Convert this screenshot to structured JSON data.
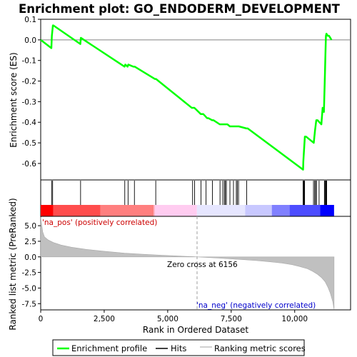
{
  "chart_data": {
    "type": "line",
    "title": "Enrichment plot: GO_ENDODERM_DEVELOPMENT",
    "es_panel": {
      "ylabel": "Enrichment score (ES)",
      "ylim": [
        -0.68,
        0.1
      ],
      "yticks": [
        "0.1",
        "0.0",
        "-0.1",
        "-0.2",
        "-0.3",
        "-0.4",
        "-0.5",
        "-0.6"
      ],
      "ytick_values": [
        0.1,
        0.0,
        -0.1,
        -0.2,
        -0.3,
        -0.4,
        -0.5,
        -0.6
      ],
      "grid": false,
      "series": [
        {
          "name": "Enrichment profile",
          "color": "#00ff00",
          "x": [
            0,
            420,
            440,
            480,
            500,
            1560,
            1580,
            3300,
            3330,
            3420,
            3450,
            3650,
            3700,
            4500,
            4540,
            5950,
            6050,
            6300,
            6400,
            6550,
            6600,
            6750,
            6800,
            7050,
            7100,
            7150,
            7200,
            7250,
            7300,
            7350,
            7450,
            7500,
            7600,
            7650,
            7700,
            7750,
            7800,
            8100,
            8150,
            10330,
            10340,
            10360,
            10380,
            10400,
            10450,
            10750,
            10800,
            10850,
            10900,
            11050,
            11100,
            11150,
            11170,
            11190,
            11210,
            11230,
            11250,
            11300,
            11350,
            11400,
            11450
          ],
          "y": [
            0.0,
            -0.04,
            0.02,
            0.07,
            0.07,
            -0.02,
            0.01,
            -0.13,
            -0.12,
            -0.13,
            -0.12,
            -0.13,
            -0.13,
            -0.19,
            -0.19,
            -0.33,
            -0.33,
            -0.36,
            -0.36,
            -0.38,
            -0.38,
            -0.39,
            -0.39,
            -0.41,
            -0.41,
            -0.41,
            -0.41,
            -0.41,
            -0.41,
            -0.41,
            -0.42,
            -0.42,
            -0.42,
            -0.42,
            -0.42,
            -0.42,
            -0.42,
            -0.43,
            -0.43,
            -0.63,
            -0.59,
            -0.55,
            -0.51,
            -0.47,
            -0.47,
            -0.5,
            -0.44,
            -0.39,
            -0.39,
            -0.41,
            -0.33,
            -0.35,
            -0.26,
            -0.17,
            -0.07,
            0.02,
            0.03,
            0.02,
            0.02,
            0.01,
            0.0
          ]
        }
      ]
    },
    "hits": {
      "name": "Hits",
      "color": "#000000",
      "x": [
        430,
        470,
        1570,
        3310,
        3440,
        3690,
        4530,
        5980,
        6060,
        6310,
        6510,
        6760,
        7060,
        7170,
        7230,
        7270,
        7310,
        7450,
        7590,
        7700,
        7740,
        7790,
        8110,
        10330,
        10350,
        10370,
        10380,
        10390,
        10740,
        10790,
        10820,
        10860,
        10960,
        11170,
        11190,
        11220,
        11240,
        11260
      ]
    },
    "heat_strip": {
      "colors": [
        "#ff0000",
        "#ff4d4d",
        "#ff7f7f",
        "#ffb3c8",
        "#ffccf0",
        "#e6e6ff",
        "#c8c8ff",
        "#8080ff",
        "#4d4dff",
        "#0000ff"
      ],
      "boundaries": [
        0,
        500,
        2350,
        4450,
        4500,
        6150,
        8050,
        9100,
        9800,
        11000,
        11550
      ]
    },
    "metric_panel": {
      "ylabel": "Ranked list metric (PreRanked)",
      "xlabel": "Rank in Ordered Dataset",
      "xlim": [
        0,
        12200
      ],
      "ylim": [
        -8.5,
        6.5
      ],
      "xticks": [
        "0",
        "2,500",
        "5,000",
        "7,500",
        "10,000"
      ],
      "xtick_values": [
        0,
        2500,
        5000,
        7500,
        10000
      ],
      "yticks": [
        "5.0",
        "2.5",
        "0.0",
        "-2.5",
        "-5.0",
        "-7.5"
      ],
      "ytick_values": [
        5.0,
        2.5,
        0.0,
        -2.5,
        -5.0,
        -7.5
      ],
      "series": {
        "name": "Ranking metric scores",
        "color": "#c0c0c0",
        "x": [
          0,
          30,
          80,
          150,
          300,
          500,
          800,
          1200,
          1800,
          2500,
          3300,
          4000,
          4800,
          5500,
          6000,
          6156,
          6500,
          7000,
          7500,
          8000,
          8500,
          9000,
          9500,
          9900,
          10200,
          10500,
          10700,
          10900,
          11050,
          11200,
          11300,
          11400,
          11500,
          11550
        ],
        "y": [
          6.4,
          5.4,
          4.0,
          3.2,
          2.7,
          2.3,
          1.9,
          1.55,
          1.2,
          0.9,
          0.6,
          0.42,
          0.25,
          0.12,
          0.04,
          0.0,
          -0.08,
          -0.2,
          -0.32,
          -0.45,
          -0.6,
          -0.78,
          -1.0,
          -1.25,
          -1.55,
          -1.9,
          -2.3,
          -2.8,
          -3.3,
          -4.0,
          -4.8,
          -5.8,
          -7.2,
          -8.4
        ]
      },
      "zero_cross_rank": 6156,
      "annotations": {
        "zero_cross": "Zero cross at 6156",
        "pos_label": "'na_pos' (positively correlated)",
        "neg_label": "'na_neg' (negatively correlated)"
      }
    },
    "legend": {
      "placement": "bottom",
      "entries": [
        {
          "label": "Enrichment profile",
          "color": "#00ff00"
        },
        {
          "label": "Hits",
          "color": "#000000"
        },
        {
          "label": "Ranking metric scores",
          "color": "#c0c0c0"
        }
      ]
    }
  }
}
